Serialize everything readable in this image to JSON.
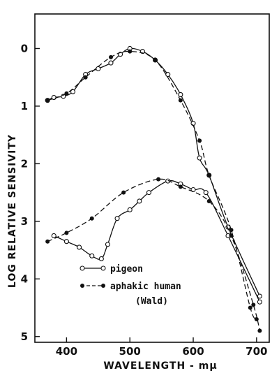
{
  "chart_data": {
    "type": "line",
    "xlabel": "WAVELENGTH - mμ",
    "ylabel": "LOG RELATIVE SENSIVITY",
    "xlim": [
      350,
      720
    ],
    "ylim": [
      5.1,
      -0.6
    ],
    "y_inverted": true,
    "grid": false,
    "legend_position": "bottom-left",
    "x_ticks": [
      400,
      500,
      600,
      700
    ],
    "y_ticks": [
      0,
      1,
      2,
      3,
      4,
      5
    ],
    "series": [
      {
        "name": "pigeon",
        "marker": "open-circle",
        "linestyle": "solid",
        "x": [
          370,
          380,
          395,
          410,
          430,
          450,
          470,
          485,
          500,
          520,
          540,
          560,
          580,
          600,
          610,
          625,
          655,
          705
        ],
        "y": [
          0.9,
          0.85,
          0.83,
          0.75,
          0.45,
          0.35,
          0.25,
          0.1,
          0.0,
          0.05,
          0.2,
          0.45,
          0.8,
          1.3,
          1.9,
          2.2,
          3.1,
          4.3
        ]
      },
      {
        "name": "aphakic human (Wald)",
        "marker": "filled-circle",
        "linestyle": "dashed",
        "x": [
          370,
          400,
          430,
          470,
          500,
          540,
          580,
          610,
          625,
          660,
          690,
          700
        ],
        "y": [
          0.9,
          0.78,
          0.5,
          0.15,
          0.05,
          0.2,
          0.9,
          1.6,
          2.2,
          3.15,
          4.5,
          4.7
        ]
      },
      {
        "name": "pigeon",
        "marker": "open-circle",
        "linestyle": "solid",
        "x": [
          380,
          400,
          420,
          440,
          455,
          465,
          480,
          500,
          515,
          530,
          560,
          580,
          600,
          620,
          655,
          705
        ],
        "y": [
          3.25,
          3.35,
          3.45,
          3.6,
          3.65,
          3.4,
          2.95,
          2.8,
          2.65,
          2.5,
          2.3,
          2.35,
          2.45,
          2.5,
          3.25,
          4.4
        ]
      },
      {
        "name": "aphakic human (Wald)",
        "marker": "filled-circle",
        "linestyle": "dashed",
        "x": [
          370,
          400,
          440,
          490,
          545,
          580,
          625,
          660,
          695,
          705
        ],
        "y": [
          3.35,
          3.2,
          2.95,
          2.5,
          2.27,
          2.4,
          2.65,
          3.25,
          4.45,
          4.9
        ]
      }
    ]
  },
  "legend": {
    "items": [
      {
        "label": "pigeon",
        "marker": "open-circle",
        "linestyle": "solid"
      },
      {
        "label": "aphakic human",
        "marker": "filled-circle",
        "linestyle": "dashed"
      },
      {
        "label": "(Wald)",
        "marker": "none",
        "linestyle": "none"
      }
    ]
  },
  "colors": {
    "ink": "#111111",
    "background": "#ffffff"
  }
}
